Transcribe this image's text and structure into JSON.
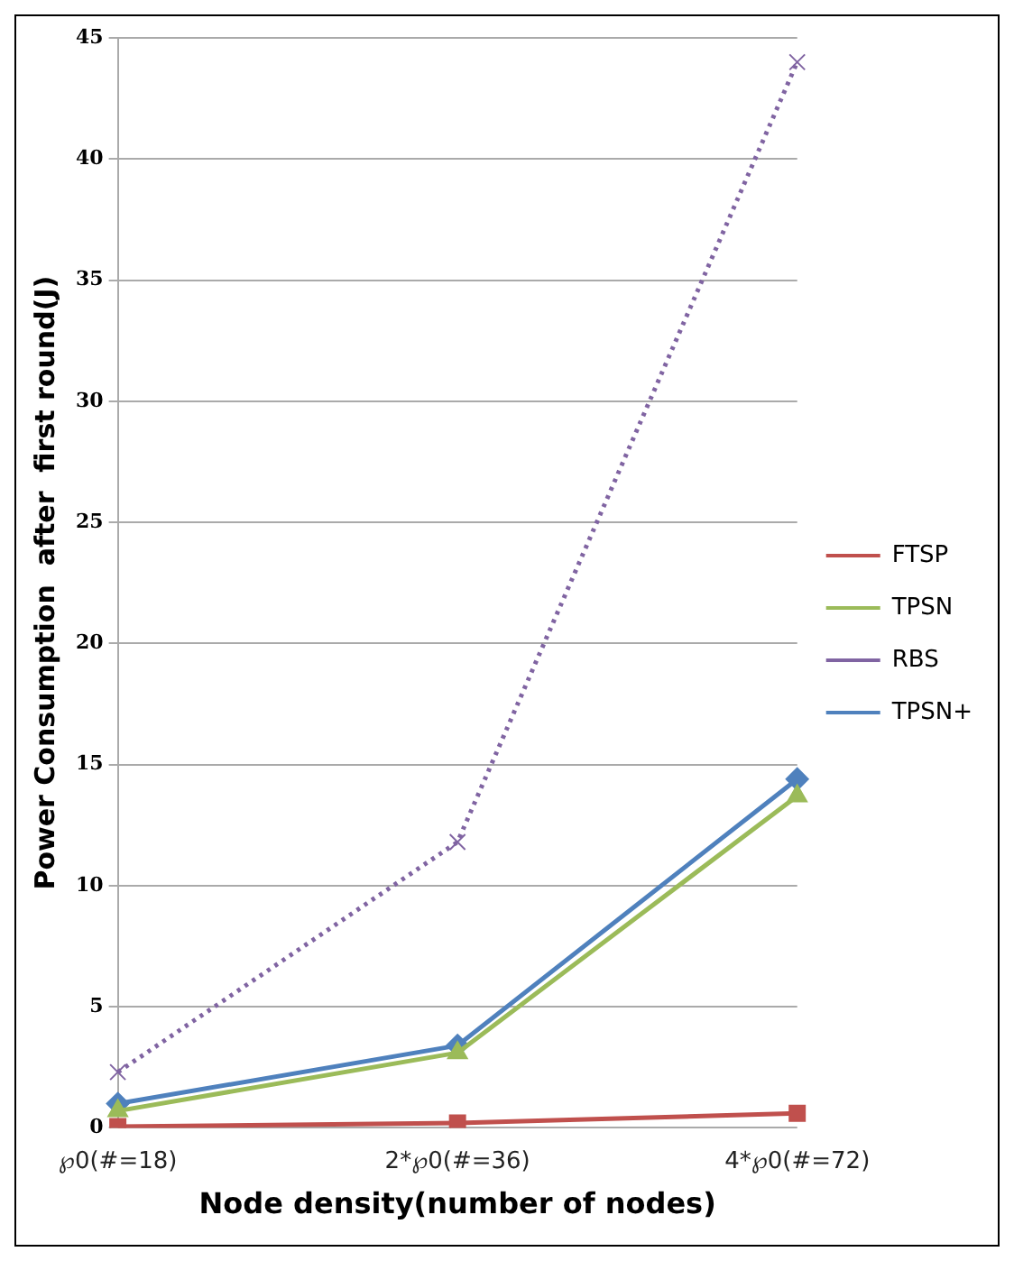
{
  "chart_data": {
    "type": "line",
    "xlabel": "Node density(number of nodes)",
    "ylabel": "Power Consumption  after  first round(J)",
    "categories": [
      "℘0(#=18)",
      "2*℘0(#=36)",
      "4*℘0(#=72)"
    ],
    "series": [
      {
        "name": "FTSP",
        "color": "#c0504d",
        "values": [
          0.05,
          0.2,
          0.6
        ],
        "marker": "square",
        "line_style": "solid"
      },
      {
        "name": "TPSN",
        "color": "#9bbb59",
        "values": [
          0.7,
          3.1,
          13.7
        ],
        "marker": "triangle",
        "line_style": "solid"
      },
      {
        "name": "RBS",
        "color": "#8064a2",
        "values": [
          2.3,
          11.8,
          44
        ],
        "marker": "cross",
        "line_style": "dotted"
      },
      {
        "name": "TPSN+",
        "color": "#4f81bd",
        "values": [
          1.0,
          3.4,
          14.4
        ],
        "marker": "diamond",
        "line_style": "solid"
      }
    ],
    "ylim": [
      0,
      45
    ],
    "yticks": [
      0,
      5,
      10,
      15,
      20,
      25,
      30,
      35,
      40,
      45
    ],
    "grid": "y",
    "legend": "right"
  }
}
